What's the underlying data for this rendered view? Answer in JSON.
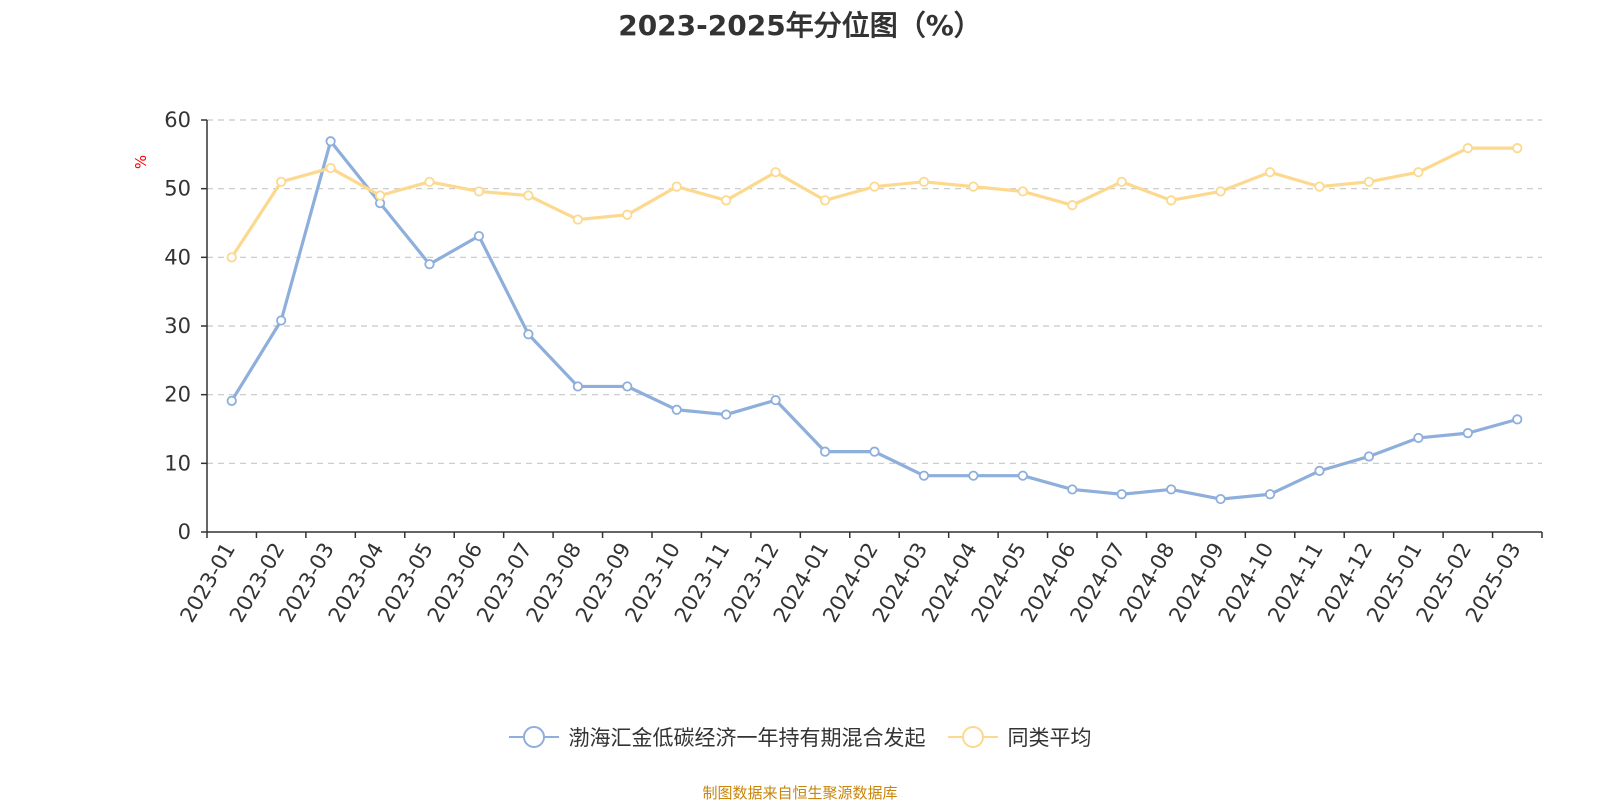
{
  "chart_data": {
    "type": "line",
    "title": "2023-2025年分位图（%）",
    "ylabel": "%",
    "ylim": [
      0,
      60
    ],
    "yticks": [
      0,
      10,
      20,
      30,
      40,
      50,
      60
    ],
    "grid": true,
    "legend_position": "bottom",
    "categories": [
      "2023-01",
      "2023-02",
      "2023-03",
      "2023-04",
      "2023-05",
      "2023-06",
      "2023-07",
      "2023-08",
      "2023-09",
      "2023-10",
      "2023-11",
      "2023-12",
      "2024-01",
      "2024-02",
      "2024-03",
      "2024-04",
      "2024-05",
      "2024-06",
      "2024-07",
      "2024-08",
      "2024-09",
      "2024-10",
      "2024-11",
      "2024-12",
      "2025-01",
      "2025-02",
      "2025-03"
    ],
    "series": [
      {
        "name": "渤海汇金低碳经济一年持有期混合发起",
        "color": "#8eaedb",
        "values": [
          19.1,
          30.8,
          56.9,
          47.9,
          39.0,
          43.1,
          28.8,
          21.2,
          21.2,
          17.8,
          17.1,
          19.2,
          11.7,
          11.7,
          8.2,
          8.2,
          8.2,
          6.2,
          5.5,
          6.2,
          4.8,
          5.5,
          8.9,
          11.0,
          13.7,
          14.4,
          16.4
        ]
      },
      {
        "name": "同类平均",
        "color": "#fcd98e",
        "values": [
          40.0,
          51.0,
          53.0,
          49.0,
          51.0,
          49.6,
          49.0,
          45.5,
          46.2,
          50.3,
          48.3,
          52.4,
          48.3,
          50.3,
          51.0,
          50.3,
          49.6,
          47.6,
          51.0,
          48.3,
          49.6,
          52.4,
          50.3,
          51.0,
          52.4,
          55.9,
          55.9
        ]
      }
    ]
  },
  "footer": {
    "source": "制图数据来自恒生聚源数据库"
  }
}
